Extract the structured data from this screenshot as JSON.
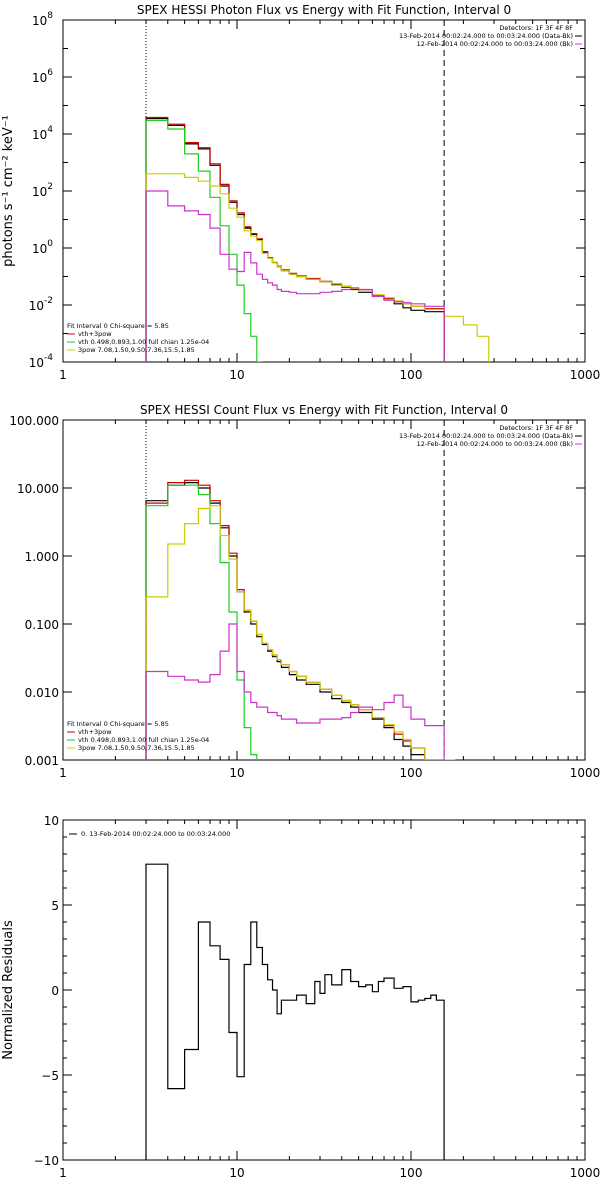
{
  "chart_data": [
    {
      "type": "line",
      "title": "SPEX HESSI Photon Flux vs Energy with Fit Function, Interval 0",
      "ylabel": "photons s⁻¹ cm⁻² keV⁻¹",
      "xlabel": "",
      "xscale": "log",
      "yscale": "log",
      "xlim": [
        1,
        1000
      ],
      "ylim": [
        0.0001,
        100000000
      ],
      "x_ticks": [
        "1",
        "10",
        "100",
        "1000"
      ],
      "y_ticks": [
        {
          "base": "10",
          "exp": "-4",
          "value": 0.0001
        },
        {
          "base": "10",
          "exp": "-2",
          "value": 0.01
        },
        {
          "base": "10",
          "exp": "0",
          "value": 1
        },
        {
          "base": "10",
          "exp": "2",
          "value": 100
        },
        {
          "base": "10",
          "exp": "4",
          "value": 10000
        },
        {
          "base": "10",
          "exp": "6",
          "value": 1000000
        },
        {
          "base": "10",
          "exp": "8",
          "value": 100000000
        }
      ],
      "legend_topright": [
        {
          "text": "Detectors: 1F 3F 4F 8F",
          "color": "#000000"
        },
        {
          "text": "13-Feb-2014 00:02:24.000 to 00:03:24.000 (Data-Bk)",
          "color": "#000000"
        },
        {
          "text": "12-Feb-2014 00:02:24.000 to 00:03:24.000 (Bk)",
          "color": "#cc33cc"
        }
      ],
      "legend_bottomleft": [
        {
          "text": "Fit Interval 0   Chi-square = 5.85",
          "color": "#000000"
        },
        {
          "text": "vth+3pow",
          "color": "#cc0000"
        },
        {
          "text": "vth 0.498,0.893,1.00  full chian 1.25e-04",
          "color": "#22cc22"
        },
        {
          "text": "3pow 7.08,1.50,9.50,7.36,15.5,1.85",
          "color": "#cccc00"
        }
      ],
      "vlines": [
        {
          "x": 3.0,
          "style": "dotted"
        },
        {
          "x": 155,
          "style": "dashed"
        }
      ],
      "series": [
        {
          "name": "Data-Bk",
          "color": "#000000",
          "edges": [
            3,
            4,
            5,
            6,
            7,
            8,
            9,
            10,
            11,
            12,
            13,
            14,
            15,
            16,
            17,
            18,
            20,
            22,
            25,
            30,
            35,
            40,
            45,
            50,
            60,
            70,
            80,
            90,
            100,
            120,
            155
          ],
          "values": [
            35000,
            20000,
            4500,
            3000,
            800,
            150,
            40,
            15,
            5,
            3,
            2,
            0.7,
            0.45,
            0.3,
            0.22,
            0.16,
            0.12,
            0.1,
            0.08,
            0.065,
            0.052,
            0.042,
            0.035,
            0.028,
            0.02,
            0.015,
            0.011,
            0.008,
            0.0065,
            0.0058
          ]
        },
        {
          "name": "vth+3pow",
          "color": "#cc0000",
          "edges": [
            3,
            4,
            5,
            6,
            7,
            8,
            9,
            10,
            11,
            12,
            13,
            14,
            15,
            16,
            17,
            18,
            20,
            22,
            25,
            30,
            35,
            40,
            45,
            50,
            60,
            70,
            80,
            90,
            100,
            120,
            155
          ],
          "values": [
            38000,
            22000,
            5000,
            3300,
            900,
            170,
            45,
            17,
            5.5,
            3.2,
            2.1,
            0.75,
            0.46,
            0.31,
            0.23,
            0.17,
            0.13,
            0.105,
            0.085,
            0.068,
            0.055,
            0.045,
            0.037,
            0.03,
            0.022,
            0.017,
            0.013,
            0.011,
            0.009,
            0.0075
          ]
        },
        {
          "name": "vth",
          "color": "#22cc22",
          "edges": [
            3,
            4,
            5,
            6,
            7,
            8,
            9,
            10,
            11,
            12,
            13,
            14
          ],
          "values": [
            30000,
            15000,
            2000,
            500,
            60,
            6,
            0.6,
            0.05,
            0.005,
            0.0008,
            0.0001
          ]
        },
        {
          "name": "3pow",
          "color": "#cccc00",
          "edges": [
            3,
            4,
            5,
            6,
            7,
            8,
            9,
            10,
            11,
            12,
            13,
            14,
            15,
            16,
            17,
            18,
            20,
            22,
            25,
            30,
            35,
            40,
            45,
            50,
            60,
            70,
            80,
            90,
            100,
            120,
            155,
            200,
            240,
            280
          ],
          "values": [
            400,
            400,
            300,
            220,
            150,
            80,
            25,
            12,
            4,
            2.6,
            1.8,
            0.65,
            0.43,
            0.3,
            0.22,
            0.16,
            0.12,
            0.1,
            0.08,
            0.065,
            0.055,
            0.045,
            0.038,
            0.03,
            0.023,
            0.018,
            0.014,
            0.011,
            0.009,
            0.007,
            0.004,
            0.002,
            0.0008
          ]
        },
        {
          "name": "Bk",
          "color": "#cc33cc",
          "edges": [
            3,
            4,
            5,
            6,
            7,
            8,
            9,
            10,
            11,
            12,
            13,
            14,
            15,
            16,
            17,
            18,
            20,
            22,
            25,
            30,
            35,
            40,
            45,
            50,
            60,
            70,
            80,
            90,
            100,
            120,
            155
          ],
          "values": [
            100,
            30,
            20,
            15,
            5,
            0.6,
            0.18,
            0.15,
            0.7,
            0.3,
            0.12,
            0.08,
            0.06,
            0.05,
            0.035,
            0.03,
            0.028,
            0.025,
            0.025,
            0.028,
            0.03,
            0.035,
            0.04,
            0.035,
            0.02,
            0.015,
            0.013,
            0.012,
            0.011,
            0.009
          ]
        }
      ]
    },
    {
      "type": "line",
      "title": "SPEX HESSI Count Flux vs Energy with Fit Function, Interval 0",
      "ylabel": "",
      "xlabel": "",
      "xscale": "log",
      "yscale": "log",
      "xlim": [
        1,
        1000
      ],
      "ylim": [
        0.001,
        100
      ],
      "x_ticks": [
        "1",
        "10",
        "100",
        "1000"
      ],
      "y_ticks": [
        {
          "label": "0.001",
          "value": 0.001
        },
        {
          "label": "0.010",
          "value": 0.01
        },
        {
          "label": "0.100",
          "value": 0.1
        },
        {
          "label": "1.000",
          "value": 1
        },
        {
          "label": "10.000",
          "value": 10
        },
        {
          "label": "100.000",
          "value": 100
        }
      ],
      "legend_topright": [
        {
          "text": "Detectors: 1F 3F 4F 8F",
          "color": "#000000"
        },
        {
          "text": "13-Feb-2014 00:02:24.000 to 00:03:24.000 (Data-Bk)",
          "color": "#000000"
        },
        {
          "text": "12-Feb-2014 00:02:24.000 to 00:03:24.000 (Bk)",
          "color": "#cc33cc"
        }
      ],
      "legend_bottomleft": [
        {
          "text": "Fit Interval 0   Chi-square = 5.85",
          "color": "#000000"
        },
        {
          "text": "vth+3pow",
          "color": "#cc0000"
        },
        {
          "text": "vth 0.498,0.893,1.00  full chian 1.25e-04",
          "color": "#22cc22"
        },
        {
          "text": "3pow 7.08,1.50,9.50,7.36,15.5,1.85",
          "color": "#cccc00"
        }
      ],
      "vlines": [
        {
          "x": 3.0,
          "style": "dotted"
        },
        {
          "x": 155,
          "style": "dashed"
        }
      ],
      "series": [
        {
          "name": "Data-Bk",
          "color": "#000000",
          "edges": [
            3,
            4,
            5,
            6,
            7,
            8,
            9,
            10,
            11,
            12,
            13,
            14,
            15,
            16,
            17,
            18,
            20,
            22,
            25,
            30,
            35,
            40,
            45,
            50,
            60,
            70,
            80,
            90,
            100,
            120,
            155
          ],
          "values": [
            6.5,
            11,
            12,
            10,
            6,
            2.6,
            1,
            0.3,
            0.15,
            0.1,
            0.065,
            0.05,
            0.04,
            0.033,
            0.028,
            0.023,
            0.018,
            0.015,
            0.013,
            0.01,
            0.008,
            0.007,
            0.006,
            0.005,
            0.004,
            0.003,
            0.002,
            0.0016,
            0.0012,
            0.0008
          ]
        },
        {
          "name": "vth+3pow",
          "color": "#cc0000",
          "edges": [
            3,
            4,
            5,
            6,
            7,
            8,
            9,
            10,
            11,
            12,
            13,
            14,
            15,
            16,
            17,
            18,
            20,
            22,
            25,
            30,
            35,
            40,
            45,
            50,
            60,
            70,
            80,
            90,
            100,
            120,
            155
          ],
          "values": [
            6,
            12,
            13,
            11,
            6.5,
            2.8,
            1.1,
            0.32,
            0.16,
            0.11,
            0.07,
            0.052,
            0.042,
            0.035,
            0.03,
            0.025,
            0.02,
            0.017,
            0.014,
            0.011,
            0.009,
            0.0075,
            0.0065,
            0.0055,
            0.0042,
            0.0032,
            0.0024,
            0.0019,
            0.0015,
            0.001
          ]
        },
        {
          "name": "vth",
          "color": "#22cc22",
          "edges": [
            3,
            4,
            5,
            6,
            7,
            8,
            9,
            10,
            11,
            12,
            13
          ],
          "values": [
            5.5,
            11,
            11,
            8,
            3,
            0.8,
            0.15,
            0.015,
            0.003,
            0.0012
          ]
        },
        {
          "name": "3pow",
          "color": "#cccc00",
          "edges": [
            3,
            4,
            5,
            6,
            7,
            8,
            9,
            10,
            11,
            12,
            13,
            14,
            15,
            16,
            17,
            18,
            20,
            22,
            25,
            30,
            35,
            40,
            45,
            50,
            60,
            70,
            80,
            90,
            100,
            120,
            155,
            180
          ],
          "values": [
            0.25,
            1.5,
            3,
            5,
            5.5,
            2,
            0.9,
            0.3,
            0.16,
            0.11,
            0.07,
            0.052,
            0.042,
            0.035,
            0.03,
            0.025,
            0.02,
            0.017,
            0.014,
            0.011,
            0.009,
            0.0075,
            0.0065,
            0.0055,
            0.0042,
            0.0033,
            0.0026,
            0.002,
            0.0015,
            0.001,
            0.0007
          ]
        },
        {
          "name": "Bk",
          "color": "#cc33cc",
          "edges": [
            3,
            4,
            5,
            6,
            7,
            8,
            9,
            10,
            11,
            12,
            13,
            14,
            15,
            16,
            17,
            18,
            20,
            22,
            25,
            30,
            35,
            40,
            45,
            50,
            60,
            70,
            80,
            90,
            100,
            120,
            155
          ],
          "values": [
            0.02,
            0.017,
            0.015,
            0.014,
            0.018,
            0.04,
            0.1,
            0.02,
            0.01,
            0.007,
            0.006,
            0.006,
            0.005,
            0.005,
            0.0045,
            0.004,
            0.004,
            0.0035,
            0.0035,
            0.004,
            0.004,
            0.0042,
            0.005,
            0.006,
            0.0055,
            0.007,
            0.009,
            0.006,
            0.004,
            0.0032
          ]
        }
      ]
    },
    {
      "type": "line",
      "title": "",
      "ylabel": "Normalized Residuals",
      "xlabel": "",
      "xscale": "log",
      "yscale": "linear",
      "xlim": [
        1,
        1000
      ],
      "ylim": [
        -10,
        10
      ],
      "x_ticks": [
        "1",
        "10",
        "100",
        "1000"
      ],
      "y_ticks": [
        {
          "label": "10",
          "value": 10
        },
        {
          "label": "5",
          "value": 5
        },
        {
          "label": "0",
          "value": 0
        },
        {
          "label": "−5",
          "value": -5
        },
        {
          "label": "−10",
          "value": -10
        }
      ],
      "legend": [
        {
          "text": "0. 13-Feb-2014 00:02:24.000 to 00:03:24.000",
          "color": "#000000"
        }
      ],
      "series": [
        {
          "name": "0. 13-Feb-2014 00:02:24.000 to 00:03:24.000",
          "color": "#000000",
          "edges": [
            3,
            4,
            5,
            6,
            7,
            8,
            9,
            10,
            11,
            12,
            13,
            14,
            15,
            16,
            17,
            18,
            20,
            22,
            25,
            28,
            30,
            32,
            35,
            40,
            45,
            50,
            55,
            60,
            65,
            70,
            80,
            90,
            100,
            110,
            120,
            130,
            140,
            155
          ],
          "values": [
            7.4,
            -5.8,
            -3.5,
            4,
            2.6,
            1.8,
            -2.5,
            -5.1,
            1.5,
            4,
            2.5,
            1.5,
            0.6,
            0,
            -1.4,
            -0.6,
            -0.6,
            -0.3,
            -0.8,
            0.5,
            -0.2,
            0.9,
            0.3,
            1.2,
            0.5,
            0.2,
            0.3,
            -0.1,
            0.5,
            0.7,
            0.1,
            0.2,
            -0.7,
            -0.6,
            -0.5,
            -0.3,
            -0.6
          ]
        }
      ]
    }
  ]
}
